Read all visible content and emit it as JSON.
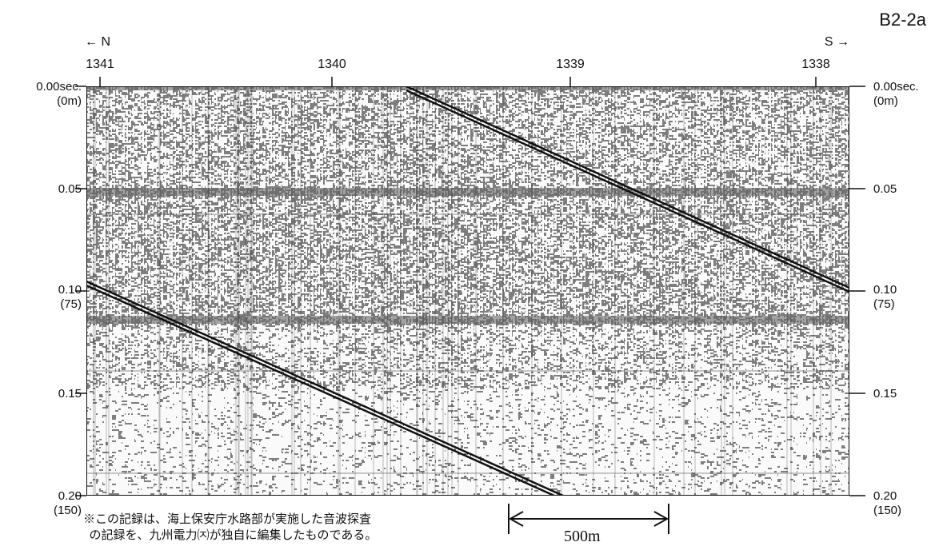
{
  "title": "B2-2a",
  "direction": {
    "left": "← N",
    "right": "S →"
  },
  "stations": [
    "1341",
    "1340",
    "1339",
    "1338"
  ],
  "time_axis": [
    {
      "sec": "0.00sec.",
      "depth": "(0m)"
    },
    {
      "sec": "0.05",
      "depth": ""
    },
    {
      "sec": "0.10",
      "depth": "(75)"
    },
    {
      "sec": "0.15",
      "depth": ""
    },
    {
      "sec": "0.20",
      "depth": "(150)"
    }
  ],
  "note": "※この記録は、海上保安庁水路部が実施した音波探査\n  の記録を、九州電力㈈が独自に編集したものである。",
  "scale_bar": {
    "label": "500m"
  },
  "colors": {
    "ink": "#111111",
    "paper": "#fafafa"
  }
}
